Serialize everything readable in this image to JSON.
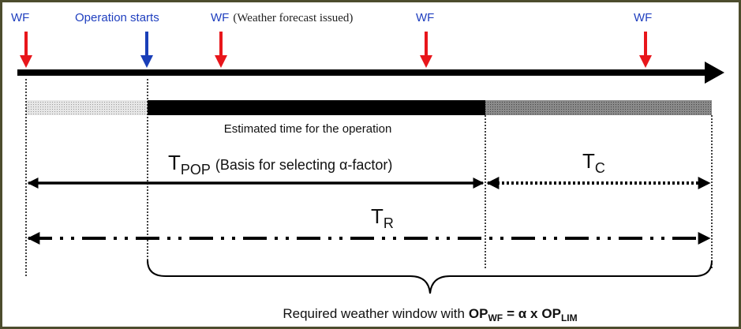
{
  "markers": [
    {
      "label": "WF"
    },
    {
      "label": "Operation starts"
    },
    {
      "label": "WF",
      "note": "(Weather forecast issued)"
    },
    {
      "label": "WF"
    },
    {
      "label": "WF"
    }
  ],
  "bar_label": "Estimated time for the operation",
  "t_pop": {
    "symbol": "T",
    "subscript": "POP",
    "note": "(Basis for selecting α-factor)"
  },
  "t_c": {
    "symbol": "T",
    "subscript": "C"
  },
  "t_r": {
    "symbol": "T",
    "subscript": "R"
  },
  "caption": {
    "prefix": "Required weather window with",
    "op1": "OP",
    "sub1": "WF",
    "mid": "= α x",
    "op2": "OP",
    "sub2": "LIM"
  }
}
